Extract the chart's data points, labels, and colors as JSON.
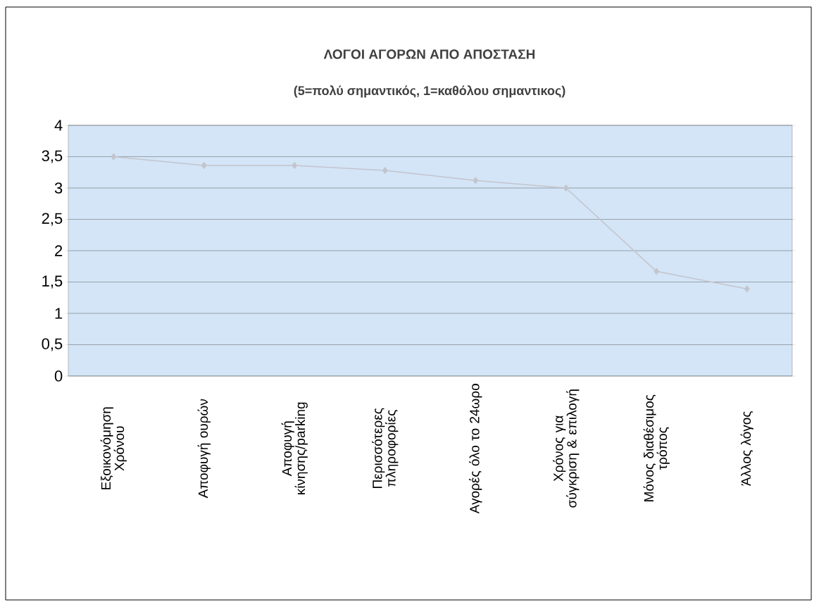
{
  "chart_data": {
    "type": "line",
    "title": "ΛΟΓΟΙ ΑΓΟΡΩΝ ΑΠΟ ΑΠΟΣΤΑΣΗ",
    "subtitle": "(5=πολύ σημαντικός, 1=καθόλου σημαντικος)",
    "categories": [
      "Εξοικονόμηση Χρόνου",
      "Αποφυγή ουρών",
      "Αποφυγή κίνησης/parking",
      "Περισσότερες πληροφορίες",
      "Αγορές όλο το 24ωρο",
      "Χρόνος για σύγκριση & επιλογή",
      "Μόνος διαθέσιμος τρόπος",
      "Άλλος λόγος"
    ],
    "series": [
      {
        "color": "#c4c4cc",
        "values": [
          3.5,
          3.36,
          3.36,
          3.28,
          3.12,
          3.0,
          1.67,
          1.39
        ]
      }
    ],
    "ylim": [
      0,
      4
    ],
    "yticks": [
      0,
      {
        "value": 0.5,
        "label": "0,5"
      },
      1,
      {
        "value": 1.5,
        "label": "1,5"
      },
      2,
      {
        "value": 2.5,
        "label": "2,5"
      },
      3,
      {
        "value": 3.5,
        "label": "3,5"
      },
      4
    ],
    "grid": "y",
    "marker": "diamond",
    "line_style": "solid"
  }
}
